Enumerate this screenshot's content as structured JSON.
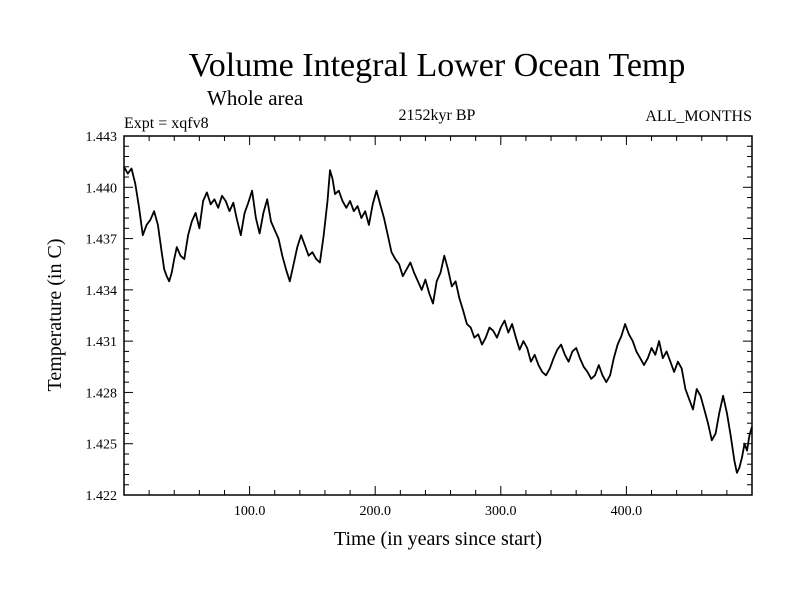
{
  "chart_data": {
    "type": "line",
    "title": "Volume Integral Lower Ocean Temp",
    "subtitle_left": "Whole area",
    "expt_label": "Expt = xqfv8",
    "center_label": "2152kyr BP",
    "right_label": "ALL_MONTHS",
    "xlabel": "Time (in years since start)",
    "ylabel": "Temperature (in C)",
    "xlim": [
      0,
      500
    ],
    "ylim": [
      1.422,
      1.443
    ],
    "x_ticks": [
      100,
      200,
      300,
      400
    ],
    "x_tick_labels": [
      "100.0",
      "200.0",
      "300.0",
      "400.0"
    ],
    "y_ticks": [
      1.422,
      1.425,
      1.428,
      1.431,
      1.434,
      1.437,
      1.44,
      1.443
    ],
    "y_tick_labels": [
      "1.422",
      "1.425",
      "1.428",
      "1.431",
      "1.434",
      "1.437",
      "1.440",
      "1.443"
    ],
    "series": [
      {
        "name": "xqfv8",
        "color": "#000000",
        "points": [
          [
            0,
            1.4412
          ],
          [
            3,
            1.4408
          ],
          [
            6,
            1.4411
          ],
          [
            9,
            1.4402
          ],
          [
            12,
            1.4388
          ],
          [
            15,
            1.4372
          ],
          [
            18,
            1.4378
          ],
          [
            21,
            1.4381
          ],
          [
            24,
            1.4386
          ],
          [
            27,
            1.4378
          ],
          [
            30,
            1.4362
          ],
          [
            32,
            1.4352
          ],
          [
            34,
            1.4348
          ],
          [
            36,
            1.4345
          ],
          [
            38,
            1.435
          ],
          [
            40,
            1.4358
          ],
          [
            42,
            1.4365
          ],
          [
            45,
            1.436
          ],
          [
            48,
            1.4358
          ],
          [
            51,
            1.4372
          ],
          [
            54,
            1.438
          ],
          [
            57,
            1.4385
          ],
          [
            60,
            1.4376
          ],
          [
            63,
            1.4392
          ],
          [
            66,
            1.4397
          ],
          [
            69,
            1.439
          ],
          [
            72,
            1.4393
          ],
          [
            75,
            1.4388
          ],
          [
            78,
            1.4395
          ],
          [
            81,
            1.4392
          ],
          [
            84,
            1.4386
          ],
          [
            87,
            1.4391
          ],
          [
            90,
            1.4381
          ],
          [
            93,
            1.4372
          ],
          [
            96,
            1.4385
          ],
          [
            99,
            1.4391
          ],
          [
            102,
            1.4398
          ],
          [
            105,
            1.4382
          ],
          [
            108,
            1.4373
          ],
          [
            111,
            1.4385
          ],
          [
            114,
            1.4393
          ],
          [
            117,
            1.438
          ],
          [
            120,
            1.4375
          ],
          [
            123,
            1.437
          ],
          [
            126,
            1.436
          ],
          [
            129,
            1.4352
          ],
          [
            132,
            1.4345
          ],
          [
            135,
            1.4355
          ],
          [
            138,
            1.4365
          ],
          [
            141,
            1.4372
          ],
          [
            144,
            1.4366
          ],
          [
            147,
            1.436
          ],
          [
            150,
            1.4362
          ],
          [
            153,
            1.4358
          ],
          [
            156,
            1.4356
          ],
          [
            159,
            1.4372
          ],
          [
            162,
            1.4392
          ],
          [
            164,
            1.441
          ],
          [
            166,
            1.4405
          ],
          [
            168,
            1.4396
          ],
          [
            171,
            1.4398
          ],
          [
            174,
            1.4392
          ],
          [
            177,
            1.4388
          ],
          [
            180,
            1.4392
          ],
          [
            183,
            1.4386
          ],
          [
            186,
            1.4389
          ],
          [
            189,
            1.4382
          ],
          [
            192,
            1.4386
          ],
          [
            195,
            1.4378
          ],
          [
            198,
            1.439
          ],
          [
            201,
            1.4398
          ],
          [
            204,
            1.439
          ],
          [
            207,
            1.4382
          ],
          [
            210,
            1.4372
          ],
          [
            213,
            1.4362
          ],
          [
            216,
            1.4358
          ],
          [
            219,
            1.4355
          ],
          [
            222,
            1.4348
          ],
          [
            225,
            1.4352
          ],
          [
            228,
            1.4356
          ],
          [
            231,
            1.435
          ],
          [
            234,
            1.4345
          ],
          [
            237,
            1.434
          ],
          [
            240,
            1.4346
          ],
          [
            243,
            1.4338
          ],
          [
            246,
            1.4332
          ],
          [
            249,
            1.4345
          ],
          [
            252,
            1.435
          ],
          [
            255,
            1.436
          ],
          [
            258,
            1.4352
          ],
          [
            261,
            1.4342
          ],
          [
            264,
            1.4345
          ],
          [
            267,
            1.4335
          ],
          [
            270,
            1.4328
          ],
          [
            273,
            1.432
          ],
          [
            276,
            1.4318
          ],
          [
            279,
            1.4312
          ],
          [
            282,
            1.4314
          ],
          [
            285,
            1.4308
          ],
          [
            288,
            1.4312
          ],
          [
            291,
            1.4318
          ],
          [
            294,
            1.4316
          ],
          [
            297,
            1.4312
          ],
          [
            300,
            1.4318
          ],
          [
            303,
            1.4322
          ],
          [
            306,
            1.4315
          ],
          [
            309,
            1.432
          ],
          [
            312,
            1.4312
          ],
          [
            315,
            1.4305
          ],
          [
            318,
            1.431
          ],
          [
            321,
            1.4306
          ],
          [
            324,
            1.4298
          ],
          [
            327,
            1.4302
          ],
          [
            330,
            1.4296
          ],
          [
            333,
            1.4292
          ],
          [
            336,
            1.429
          ],
          [
            339,
            1.4294
          ],
          [
            342,
            1.43
          ],
          [
            345,
            1.4305
          ],
          [
            348,
            1.4308
          ],
          [
            351,
            1.4302
          ],
          [
            354,
            1.4298
          ],
          [
            357,
            1.4304
          ],
          [
            360,
            1.4306
          ],
          [
            363,
            1.43
          ],
          [
            366,
            1.4295
          ],
          [
            369,
            1.4292
          ],
          [
            372,
            1.4288
          ],
          [
            375,
            1.429
          ],
          [
            378,
            1.4296
          ],
          [
            381,
            1.429
          ],
          [
            384,
            1.4286
          ],
          [
            387,
            1.429
          ],
          [
            390,
            1.43
          ],
          [
            393,
            1.4308
          ],
          [
            396,
            1.4313
          ],
          [
            399,
            1.432
          ],
          [
            402,
            1.4314
          ],
          [
            405,
            1.431
          ],
          [
            408,
            1.4304
          ],
          [
            411,
            1.43
          ],
          [
            414,
            1.4296
          ],
          [
            417,
            1.43
          ],
          [
            420,
            1.4306
          ],
          [
            423,
            1.4302
          ],
          [
            426,
            1.431
          ],
          [
            429,
            1.43
          ],
          [
            432,
            1.4304
          ],
          [
            435,
            1.4298
          ],
          [
            438,
            1.4292
          ],
          [
            441,
            1.4298
          ],
          [
            444,
            1.4294
          ],
          [
            447,
            1.4282
          ],
          [
            450,
            1.4276
          ],
          [
            453,
            1.427
          ],
          [
            456,
            1.4282
          ],
          [
            459,
            1.4278
          ],
          [
            462,
            1.427
          ],
          [
            465,
            1.4262
          ],
          [
            468,
            1.4252
          ],
          [
            471,
            1.4256
          ],
          [
            474,
            1.4268
          ],
          [
            477,
            1.4278
          ],
          [
            480,
            1.4268
          ],
          [
            483,
            1.4255
          ],
          [
            486,
            1.424
          ],
          [
            488,
            1.4233
          ],
          [
            490,
            1.4236
          ],
          [
            492,
            1.4242
          ],
          [
            494,
            1.425
          ],
          [
            496,
            1.4246
          ],
          [
            498,
            1.4255
          ],
          [
            500,
            1.426
          ]
        ]
      }
    ]
  }
}
